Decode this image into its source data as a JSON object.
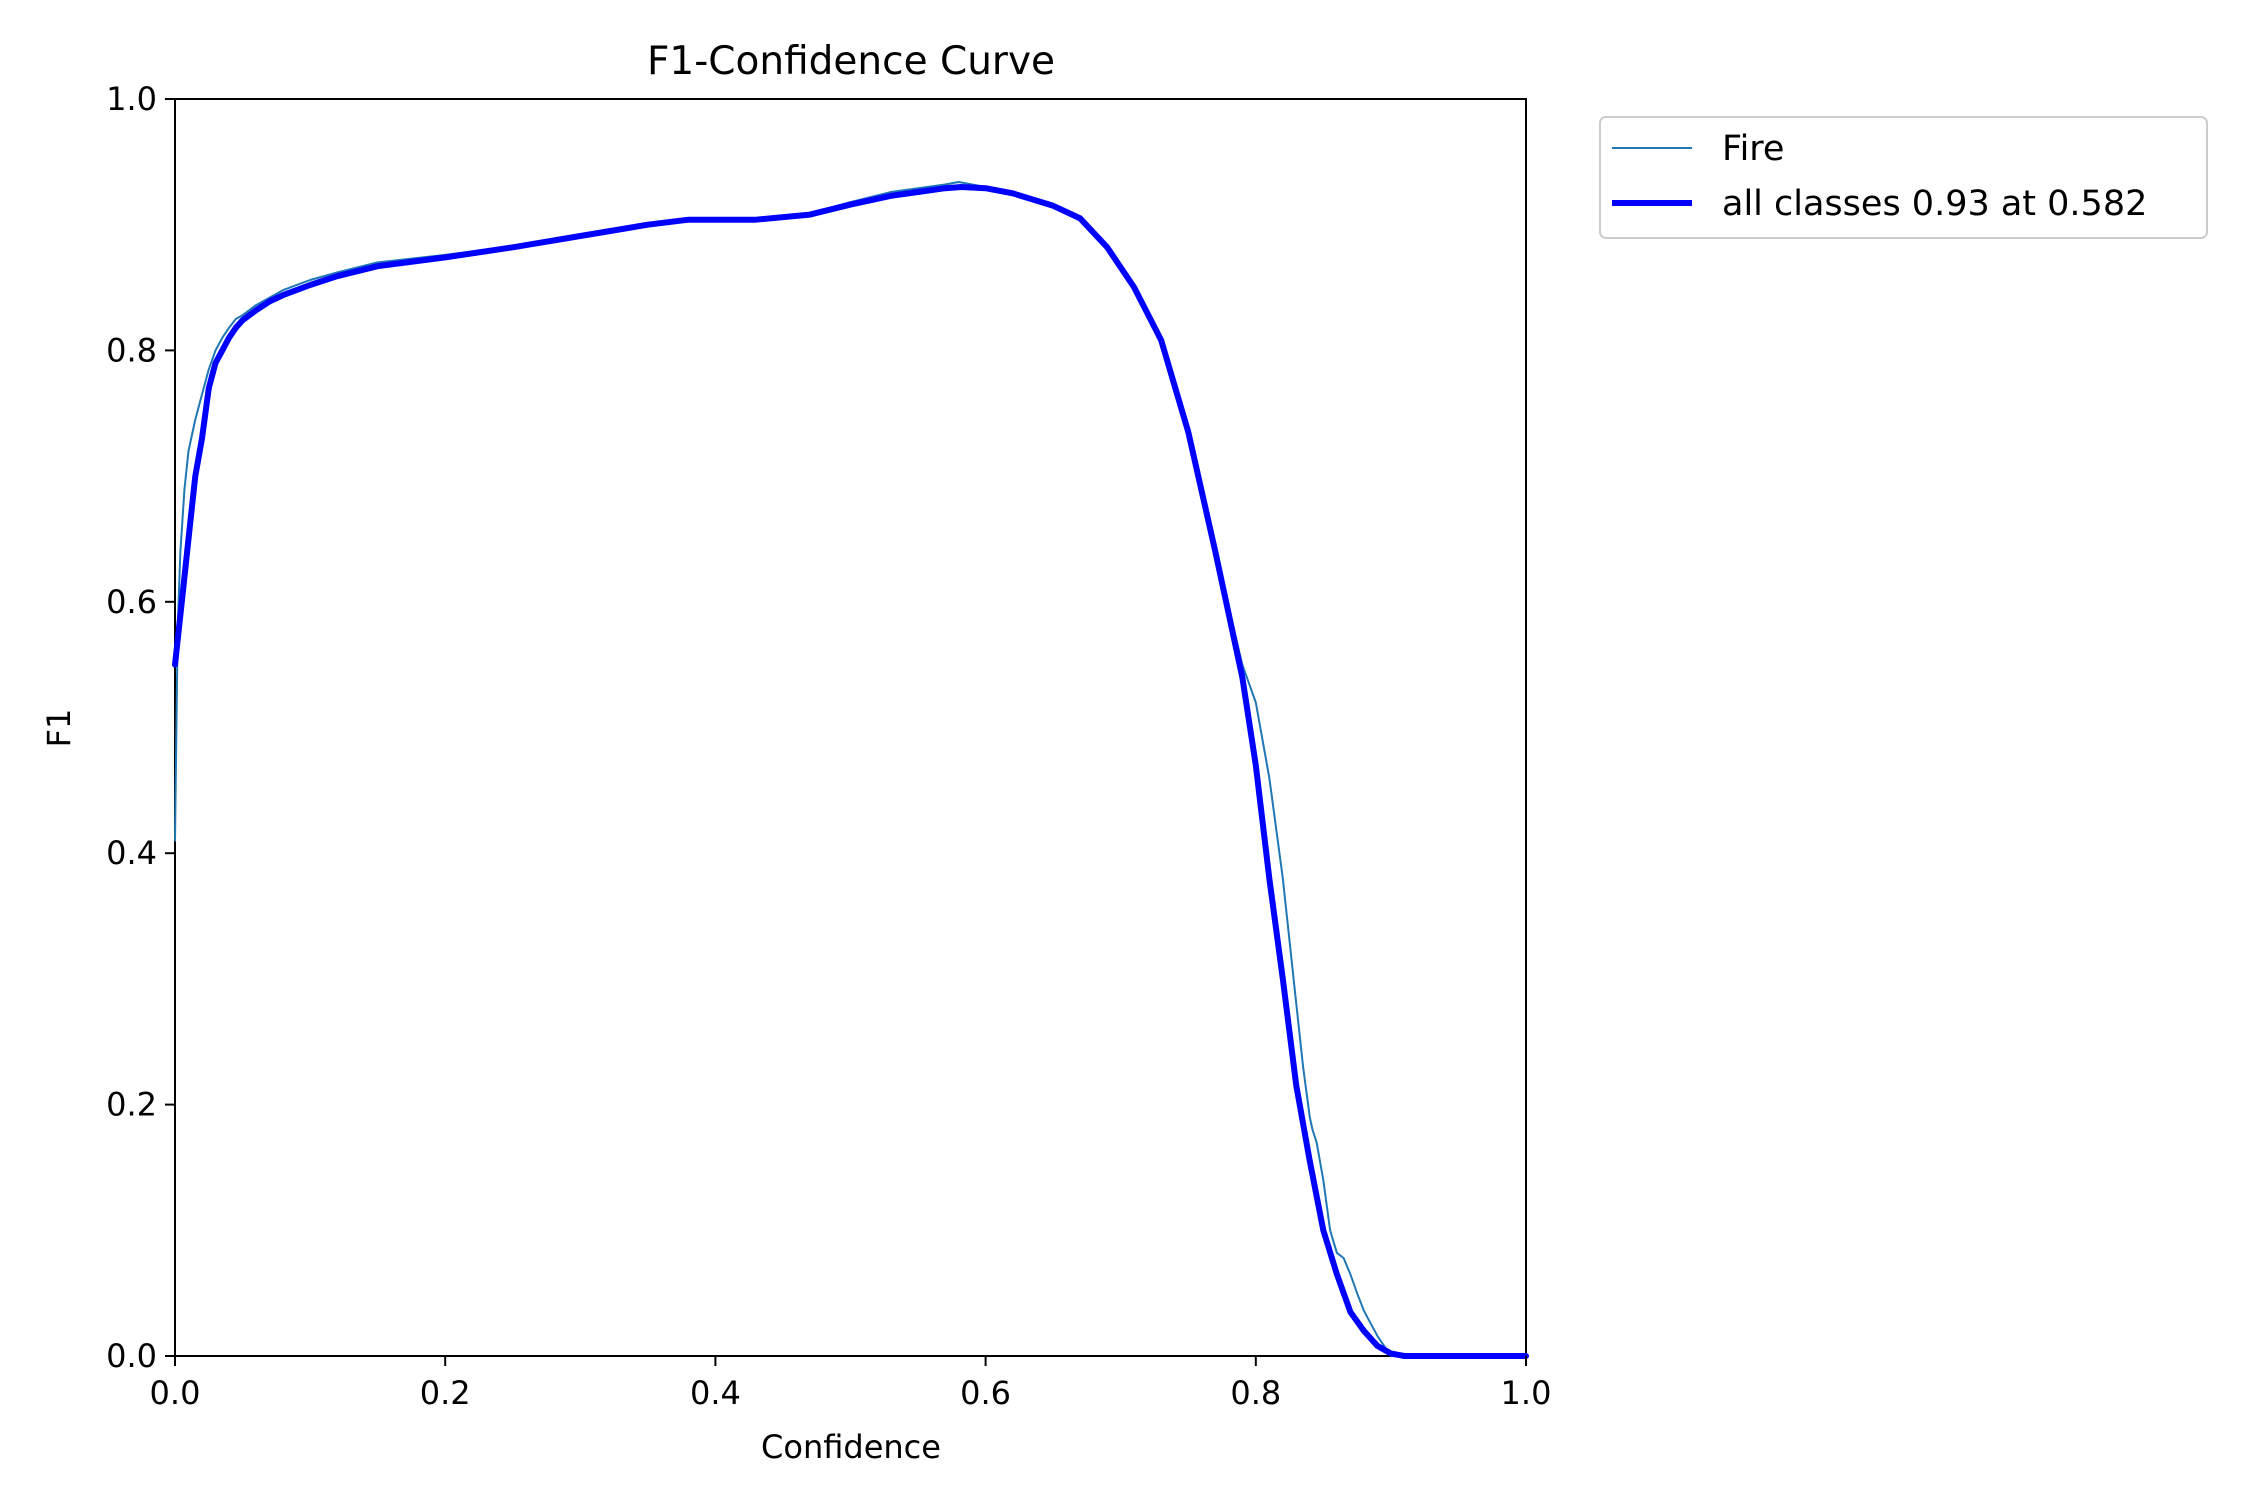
{
  "chart_data": {
    "type": "line",
    "title": "F1-Confidence Curve",
    "xlabel": "Confidence",
    "ylabel": "F1",
    "xlim": [
      0.0,
      1.0
    ],
    "ylim": [
      0.0,
      1.0
    ],
    "xticks": [
      "0.0",
      "0.2",
      "0.4",
      "0.6",
      "0.8",
      "1.0"
    ],
    "yticks": [
      "0.0",
      "0.2",
      "0.4",
      "0.6",
      "0.8",
      "1.0"
    ],
    "grid": false,
    "legend_position": "outside-right-top",
    "series": [
      {
        "name": "Fire",
        "color": "#1f77b4",
        "x": [
          0.0,
          0.001,
          0.002,
          0.004,
          0.007,
          0.01,
          0.015,
          0.02,
          0.025,
          0.03,
          0.035,
          0.04,
          0.045,
          0.05,
          0.06,
          0.08,
          0.1,
          0.12,
          0.15,
          0.2,
          0.25,
          0.3,
          0.35,
          0.38,
          0.4,
          0.43,
          0.47,
          0.5,
          0.53,
          0.55,
          0.57,
          0.58,
          0.59,
          0.6,
          0.62,
          0.65,
          0.67,
          0.69,
          0.71,
          0.73,
          0.75,
          0.77,
          0.79,
          0.8,
          0.81,
          0.815,
          0.82,
          0.83,
          0.835,
          0.84,
          0.842,
          0.845,
          0.85,
          0.855,
          0.86,
          0.865,
          0.87,
          0.875,
          0.88,
          0.885,
          0.89,
          0.895,
          0.898,
          0.9,
          0.905,
          0.92,
          0.95,
          1.0
        ],
        "y": [
          0.41,
          0.5,
          0.58,
          0.64,
          0.69,
          0.72,
          0.745,
          0.765,
          0.785,
          0.8,
          0.81,
          0.818,
          0.825,
          0.828,
          0.836,
          0.848,
          0.856,
          0.862,
          0.87,
          0.876,
          0.883,
          0.892,
          0.901,
          0.905,
          0.905,
          0.905,
          0.909,
          0.918,
          0.926,
          0.929,
          0.932,
          0.934,
          0.932,
          0.93,
          0.925,
          0.915,
          0.905,
          0.882,
          0.852,
          0.81,
          0.74,
          0.64,
          0.55,
          0.52,
          0.46,
          0.42,
          0.38,
          0.28,
          0.23,
          0.19,
          0.18,
          0.17,
          0.14,
          0.1,
          0.082,
          0.078,
          0.065,
          0.05,
          0.036,
          0.026,
          0.016,
          0.008,
          0.003,
          0.0,
          0.0,
          0.0,
          0.0,
          0.0
        ]
      },
      {
        "name": "all classes 0.93 at 0.582",
        "color": "#0000ff",
        "x": [
          0.0,
          0.005,
          0.01,
          0.015,
          0.02,
          0.025,
          0.03,
          0.035,
          0.04,
          0.045,
          0.05,
          0.06,
          0.07,
          0.08,
          0.1,
          0.12,
          0.15,
          0.2,
          0.25,
          0.3,
          0.35,
          0.38,
          0.4,
          0.43,
          0.47,
          0.5,
          0.53,
          0.55,
          0.57,
          0.582,
          0.6,
          0.62,
          0.65,
          0.67,
          0.69,
          0.71,
          0.73,
          0.75,
          0.77,
          0.79,
          0.8,
          0.81,
          0.82,
          0.83,
          0.84,
          0.85,
          0.86,
          0.87,
          0.88,
          0.89,
          0.9,
          0.91,
          0.92,
          0.95,
          1.0
        ],
        "y": [
          0.55,
          0.6,
          0.65,
          0.7,
          0.73,
          0.77,
          0.79,
          0.8,
          0.81,
          0.818,
          0.824,
          0.832,
          0.839,
          0.844,
          0.852,
          0.859,
          0.867,
          0.874,
          0.882,
          0.891,
          0.9,
          0.904,
          0.904,
          0.904,
          0.908,
          0.916,
          0.923,
          0.926,
          0.929,
          0.93,
          0.929,
          0.925,
          0.915,
          0.905,
          0.882,
          0.85,
          0.808,
          0.735,
          0.64,
          0.54,
          0.47,
          0.38,
          0.3,
          0.215,
          0.155,
          0.1,
          0.065,
          0.035,
          0.02,
          0.008,
          0.002,
          0.0,
          0.0,
          0.0,
          0.0
        ]
      }
    ]
  }
}
